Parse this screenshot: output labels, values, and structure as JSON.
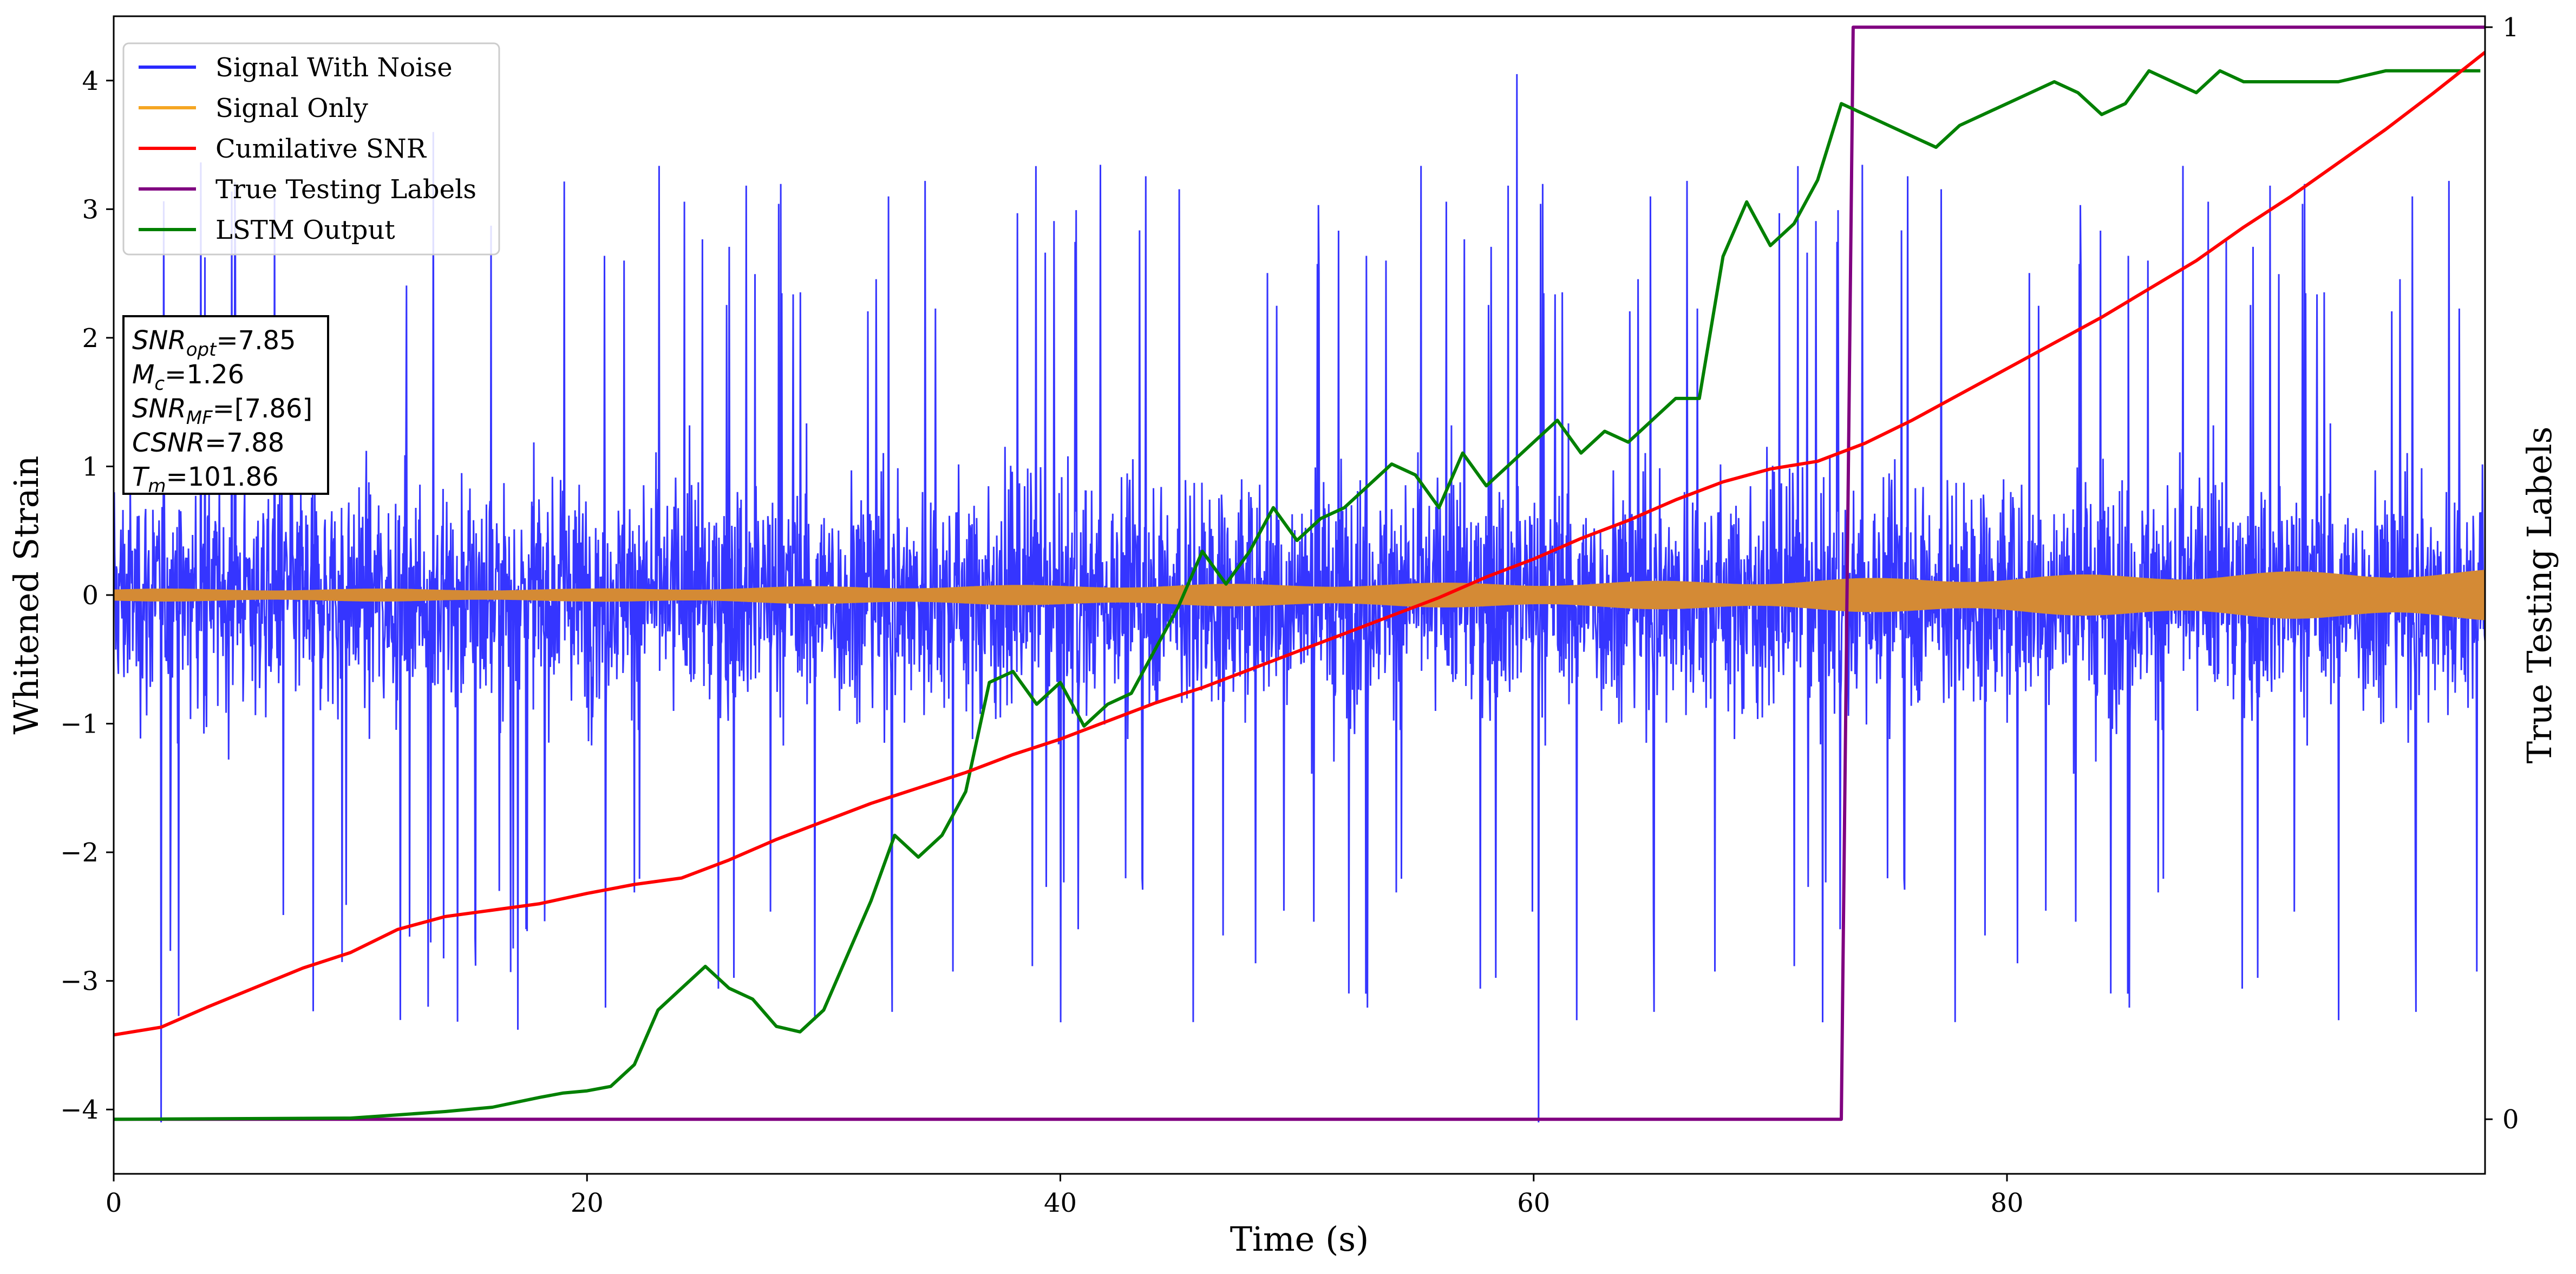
{
  "chart_data": {
    "type": "line",
    "xlabel": "Time (s)",
    "ylabel": "Whitened Strain",
    "y2label": "True Testing Labels",
    "xlim": [
      0,
      100.2
    ],
    "ylim": [
      -4.5,
      4.5
    ],
    "y2lim": [
      -0.05,
      1.01
    ],
    "x_ticks": [
      0,
      20,
      40,
      60,
      80
    ],
    "y_ticks": [
      -4,
      -3,
      -2,
      -1,
      0,
      1,
      2,
      3,
      4
    ],
    "y2_ticks": [
      0,
      1
    ],
    "legend_position": "top-left",
    "grid": false,
    "series": [
      {
        "name": "Signal With Noise",
        "axis": "left",
        "color": "#2a2aff",
        "envelope_summary": {
          "x_range": [
            0,
            100.2
          ],
          "typical_band": [
            -1.2,
            1.2
          ],
          "peak_range": [
            -4.1,
            4.05
          ],
          "notable_spikes": [
            {
              "x": 2,
              "y": -4.1
            },
            {
              "x": 13.5,
              "y": 3.6
            },
            {
              "x": 60.2,
              "y": -4.1
            },
            {
              "x": 59.3,
              "y": 4.05
            }
          ]
        }
      },
      {
        "name": "Signal Only",
        "axis": "left",
        "color": "#f5a623",
        "envelope": {
          "x": [
            0,
            20,
            30,
            40,
            50,
            60,
            70,
            80,
            90,
            100.2
          ],
          "amplitude": [
            0.05,
            0.05,
            0.07,
            0.08,
            0.09,
            0.1,
            0.12,
            0.15,
            0.18,
            0.2
          ]
        }
      },
      {
        "name": "Cumilative SNR",
        "axis": "left",
        "color": "#ff0000",
        "x": [
          0,
          2,
          4,
          6,
          8,
          10,
          12,
          14,
          16,
          18,
          20,
          22,
          24,
          26,
          28,
          30,
          32,
          34,
          36,
          38,
          40,
          42,
          44,
          46,
          48,
          50,
          52,
          54,
          56,
          58,
          60,
          62,
          64,
          66,
          68,
          70,
          72,
          74,
          76,
          78,
          80,
          82,
          84,
          86,
          88,
          90,
          92,
          94,
          96,
          98,
          100.2
        ],
        "y": [
          -3.42,
          -3.36,
          -3.2,
          -3.05,
          -2.9,
          -2.78,
          -2.6,
          -2.5,
          -2.45,
          -2.4,
          -2.32,
          -2.25,
          -2.2,
          -2.06,
          -1.9,
          -1.76,
          -1.62,
          -1.5,
          -1.38,
          -1.24,
          -1.12,
          -0.98,
          -0.84,
          -0.72,
          -0.58,
          -0.44,
          -0.3,
          -0.16,
          -0.02,
          0.14,
          0.28,
          0.44,
          0.58,
          0.74,
          0.88,
          0.98,
          1.04,
          1.18,
          1.36,
          1.56,
          1.76,
          1.96,
          2.16,
          2.38,
          2.6,
          2.86,
          3.1,
          3.36,
          3.62,
          3.9,
          4.22
        ]
      },
      {
        "name": "True Testing Labels",
        "axis": "right",
        "color": "#800080",
        "x": [
          0,
          73,
          73.5,
          100.2
        ],
        "y": [
          0,
          0,
          1,
          1
        ]
      },
      {
        "name": "LSTM Output",
        "axis": "right",
        "color": "#008000",
        "x": [
          0,
          10,
          12,
          14,
          16,
          18,
          19,
          20,
          21,
          22,
          23,
          24,
          25,
          26,
          27,
          28,
          29,
          30,
          31,
          32,
          33,
          34,
          35,
          36,
          37,
          38,
          39,
          40,
          41,
          42,
          43,
          44,
          45,
          46,
          47,
          48,
          49,
          50,
          51,
          52,
          53,
          54,
          55,
          56,
          57,
          58,
          59,
          60,
          61,
          62,
          63,
          64,
          65,
          66,
          67,
          68,
          69,
          70,
          71,
          72,
          73,
          74,
          75,
          76,
          77,
          78,
          79,
          80,
          81,
          82,
          83,
          84,
          85,
          86,
          87,
          88,
          89,
          90,
          92,
          94,
          96,
          98,
          100
        ],
        "y": [
          0,
          0.001,
          0.004,
          0.007,
          0.011,
          0.02,
          0.024,
          0.026,
          0.03,
          0.05,
          0.1,
          0.12,
          0.14,
          0.12,
          0.11,
          0.085,
          0.08,
          0.1,
          0.15,
          0.2,
          0.26,
          0.24,
          0.26,
          0.3,
          0.4,
          0.41,
          0.38,
          0.4,
          0.36,
          0.38,
          0.39,
          0.43,
          0.47,
          0.52,
          0.49,
          0.52,
          0.56,
          0.53,
          0.55,
          0.56,
          0.58,
          0.6,
          0.59,
          0.56,
          0.61,
          0.58,
          0.6,
          0.62,
          0.64,
          0.61,
          0.63,
          0.62,
          0.64,
          0.66,
          0.66,
          0.79,
          0.84,
          0.8,
          0.82,
          0.86,
          0.93,
          0.92,
          0.91,
          0.9,
          0.89,
          0.91,
          0.92,
          0.93,
          0.94,
          0.95,
          0.94,
          0.92,
          0.93,
          0.96,
          0.95,
          0.94,
          0.96,
          0.95,
          0.95,
          0.95,
          0.96,
          0.96,
          0.96
        ]
      }
    ],
    "annotation": {
      "lines": [
        {
          "base": "SNR",
          "sub": "opt",
          "value": "=7.85"
        },
        {
          "base": "M",
          "sub": "c",
          "value": "=1.26"
        },
        {
          "base": "SNR",
          "sub": "MF",
          "value": "=[7.86]"
        },
        {
          "base": "CSNR",
          "sub": "",
          "value": "=7.88"
        },
        {
          "base": "T",
          "sub": "m",
          "value": "=101.86"
        }
      ]
    }
  }
}
